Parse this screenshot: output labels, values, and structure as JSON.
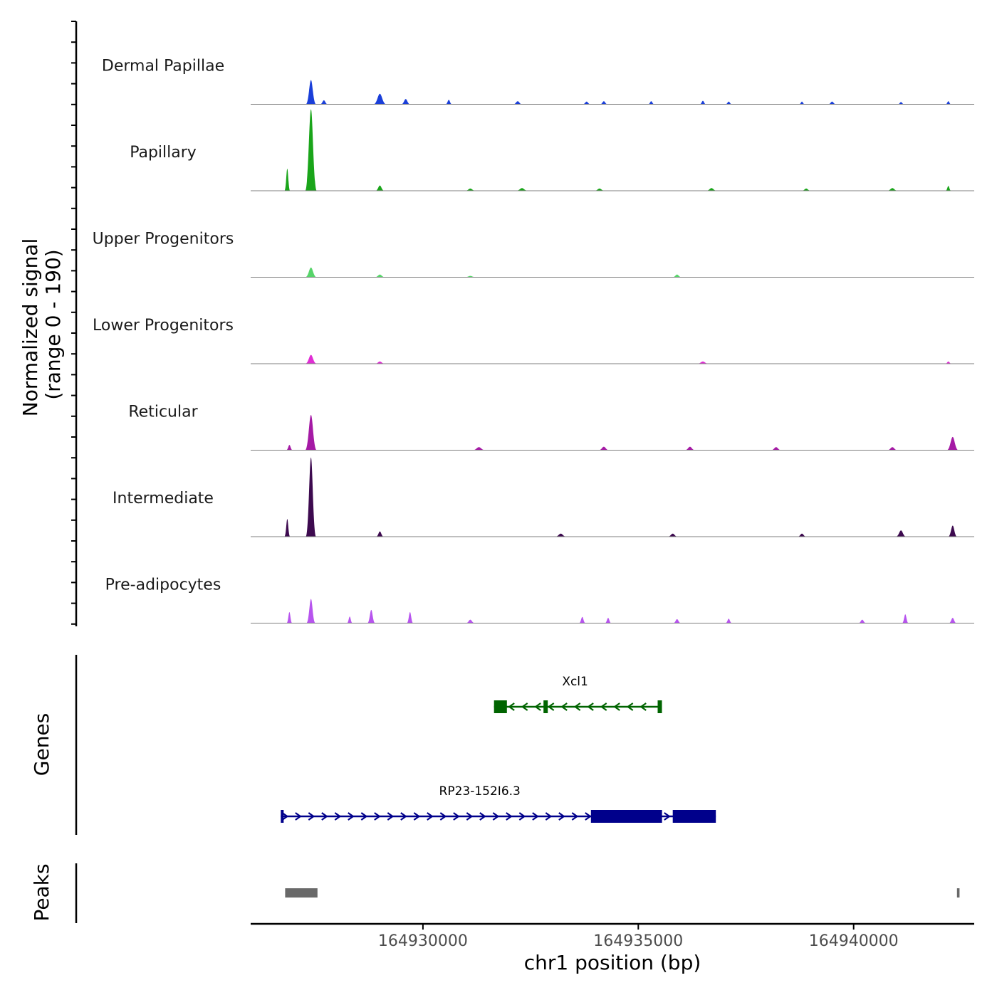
{
  "chart_data": {
    "type": "area",
    "chromosome": "chr1",
    "x_range_bp": [
      164926000,
      164942800
    ],
    "signal_range": [
      0,
      190
    ],
    "y_axis_title_line1": "Normalized signal",
    "y_axis_title_line2": "(range 0 - 190)",
    "x_axis_title": "chr1 position (bp)",
    "x_ticks": [
      {
        "value": 164930000,
        "label": "164930000"
      },
      {
        "value": 164935000,
        "label": "164935000"
      },
      {
        "value": 164940000,
        "label": "164940000"
      }
    ],
    "coverage_tracks": [
      {
        "name": "Dermal Papillae",
        "color": "#1a3fd9",
        "peaks": [
          [
            164927400,
            55,
            80
          ],
          [
            164927700,
            9,
            60
          ],
          [
            164929000,
            24,
            100
          ],
          [
            164929600,
            12,
            70
          ],
          [
            164930600,
            10,
            50
          ],
          [
            164932200,
            7,
            70
          ],
          [
            164933800,
            6,
            60
          ],
          [
            164934200,
            7,
            60
          ],
          [
            164935300,
            7,
            50
          ],
          [
            164936500,
            8,
            50
          ],
          [
            164937100,
            6,
            50
          ],
          [
            164938800,
            6,
            40
          ],
          [
            164939500,
            6,
            60
          ],
          [
            164941100,
            5,
            50
          ],
          [
            164942200,
            7,
            40
          ]
        ]
      },
      {
        "name": "Papillary",
        "color": "#1aa51a",
        "peaks": [
          [
            164926850,
            50,
            40
          ],
          [
            164927400,
            185,
            90
          ],
          [
            164929000,
            12,
            70
          ],
          [
            164931100,
            5,
            80
          ],
          [
            164932300,
            6,
            90
          ],
          [
            164934100,
            5,
            80
          ],
          [
            164936700,
            6,
            80
          ],
          [
            164938900,
            5,
            70
          ],
          [
            164940900,
            6,
            80
          ],
          [
            164942200,
            11,
            40
          ]
        ]
      },
      {
        "name": "Upper Progenitors",
        "color": "#57d46a",
        "peaks": [
          [
            164927400,
            22,
            90
          ],
          [
            164929000,
            6,
            80
          ],
          [
            164931100,
            3,
            90
          ],
          [
            164935900,
            6,
            70
          ]
        ]
      },
      {
        "name": "Lower Progenitors",
        "color": "#e02ed4",
        "peaks": [
          [
            164927400,
            20,
            90
          ],
          [
            164929000,
            5,
            80
          ],
          [
            164936500,
            5,
            90
          ],
          [
            164942200,
            5,
            50
          ]
        ]
      },
      {
        "name": "Reticular",
        "color": "#a51aa5",
        "peaks": [
          [
            164926900,
            12,
            50
          ],
          [
            164927400,
            80,
            90
          ],
          [
            164931300,
            7,
            100
          ],
          [
            164934200,
            8,
            80
          ],
          [
            164936200,
            8,
            80
          ],
          [
            164938200,
            7,
            80
          ],
          [
            164940900,
            7,
            80
          ],
          [
            164942300,
            30,
            90
          ]
        ]
      },
      {
        "name": "Intermediate",
        "color": "#3d0a4f",
        "peaks": [
          [
            164926850,
            40,
            40
          ],
          [
            164927400,
            180,
            80
          ],
          [
            164929000,
            12,
            60
          ],
          [
            164933200,
            7,
            90
          ],
          [
            164935800,
            7,
            80
          ],
          [
            164938800,
            7,
            70
          ],
          [
            164941100,
            14,
            80
          ],
          [
            164942300,
            25,
            70
          ]
        ]
      },
      {
        "name": "Pre-adipocytes",
        "color": "#b754ee",
        "peaks": [
          [
            164926900,
            25,
            40
          ],
          [
            164927400,
            55,
            70
          ],
          [
            164928300,
            15,
            40
          ],
          [
            164928800,
            30,
            60
          ],
          [
            164929700,
            25,
            50
          ],
          [
            164931100,
            8,
            70
          ],
          [
            164933700,
            14,
            50
          ],
          [
            164934300,
            12,
            50
          ],
          [
            164935900,
            9,
            60
          ],
          [
            164937100,
            10,
            50
          ],
          [
            164940200,
            8,
            60
          ],
          [
            164941200,
            20,
            50
          ],
          [
            164942300,
            12,
            60
          ]
        ]
      }
    ],
    "genes": [
      {
        "name": "Xcl1",
        "strand": "-",
        "color": "#006400",
        "start": 164931650,
        "end": 164935550,
        "exons": [
          [
            164931650,
            164931950
          ],
          [
            164932800,
            164932900
          ],
          [
            164935450,
            164935550
          ]
        ]
      },
      {
        "name": "RP23-152I6.3",
        "strand": "+",
        "color": "#00008b",
        "start": 164926700,
        "end": 164936800,
        "exons": [
          [
            164926700,
            164926750
          ],
          [
            164933900,
            164935550
          ],
          [
            164935800,
            164936800
          ]
        ]
      }
    ],
    "panel_titles": {
      "genes": "Genes",
      "peaks": "Peaks"
    },
    "peaks": [
      [
        164926800,
        164927550
      ],
      [
        164942400,
        164942460
      ]
    ]
  }
}
